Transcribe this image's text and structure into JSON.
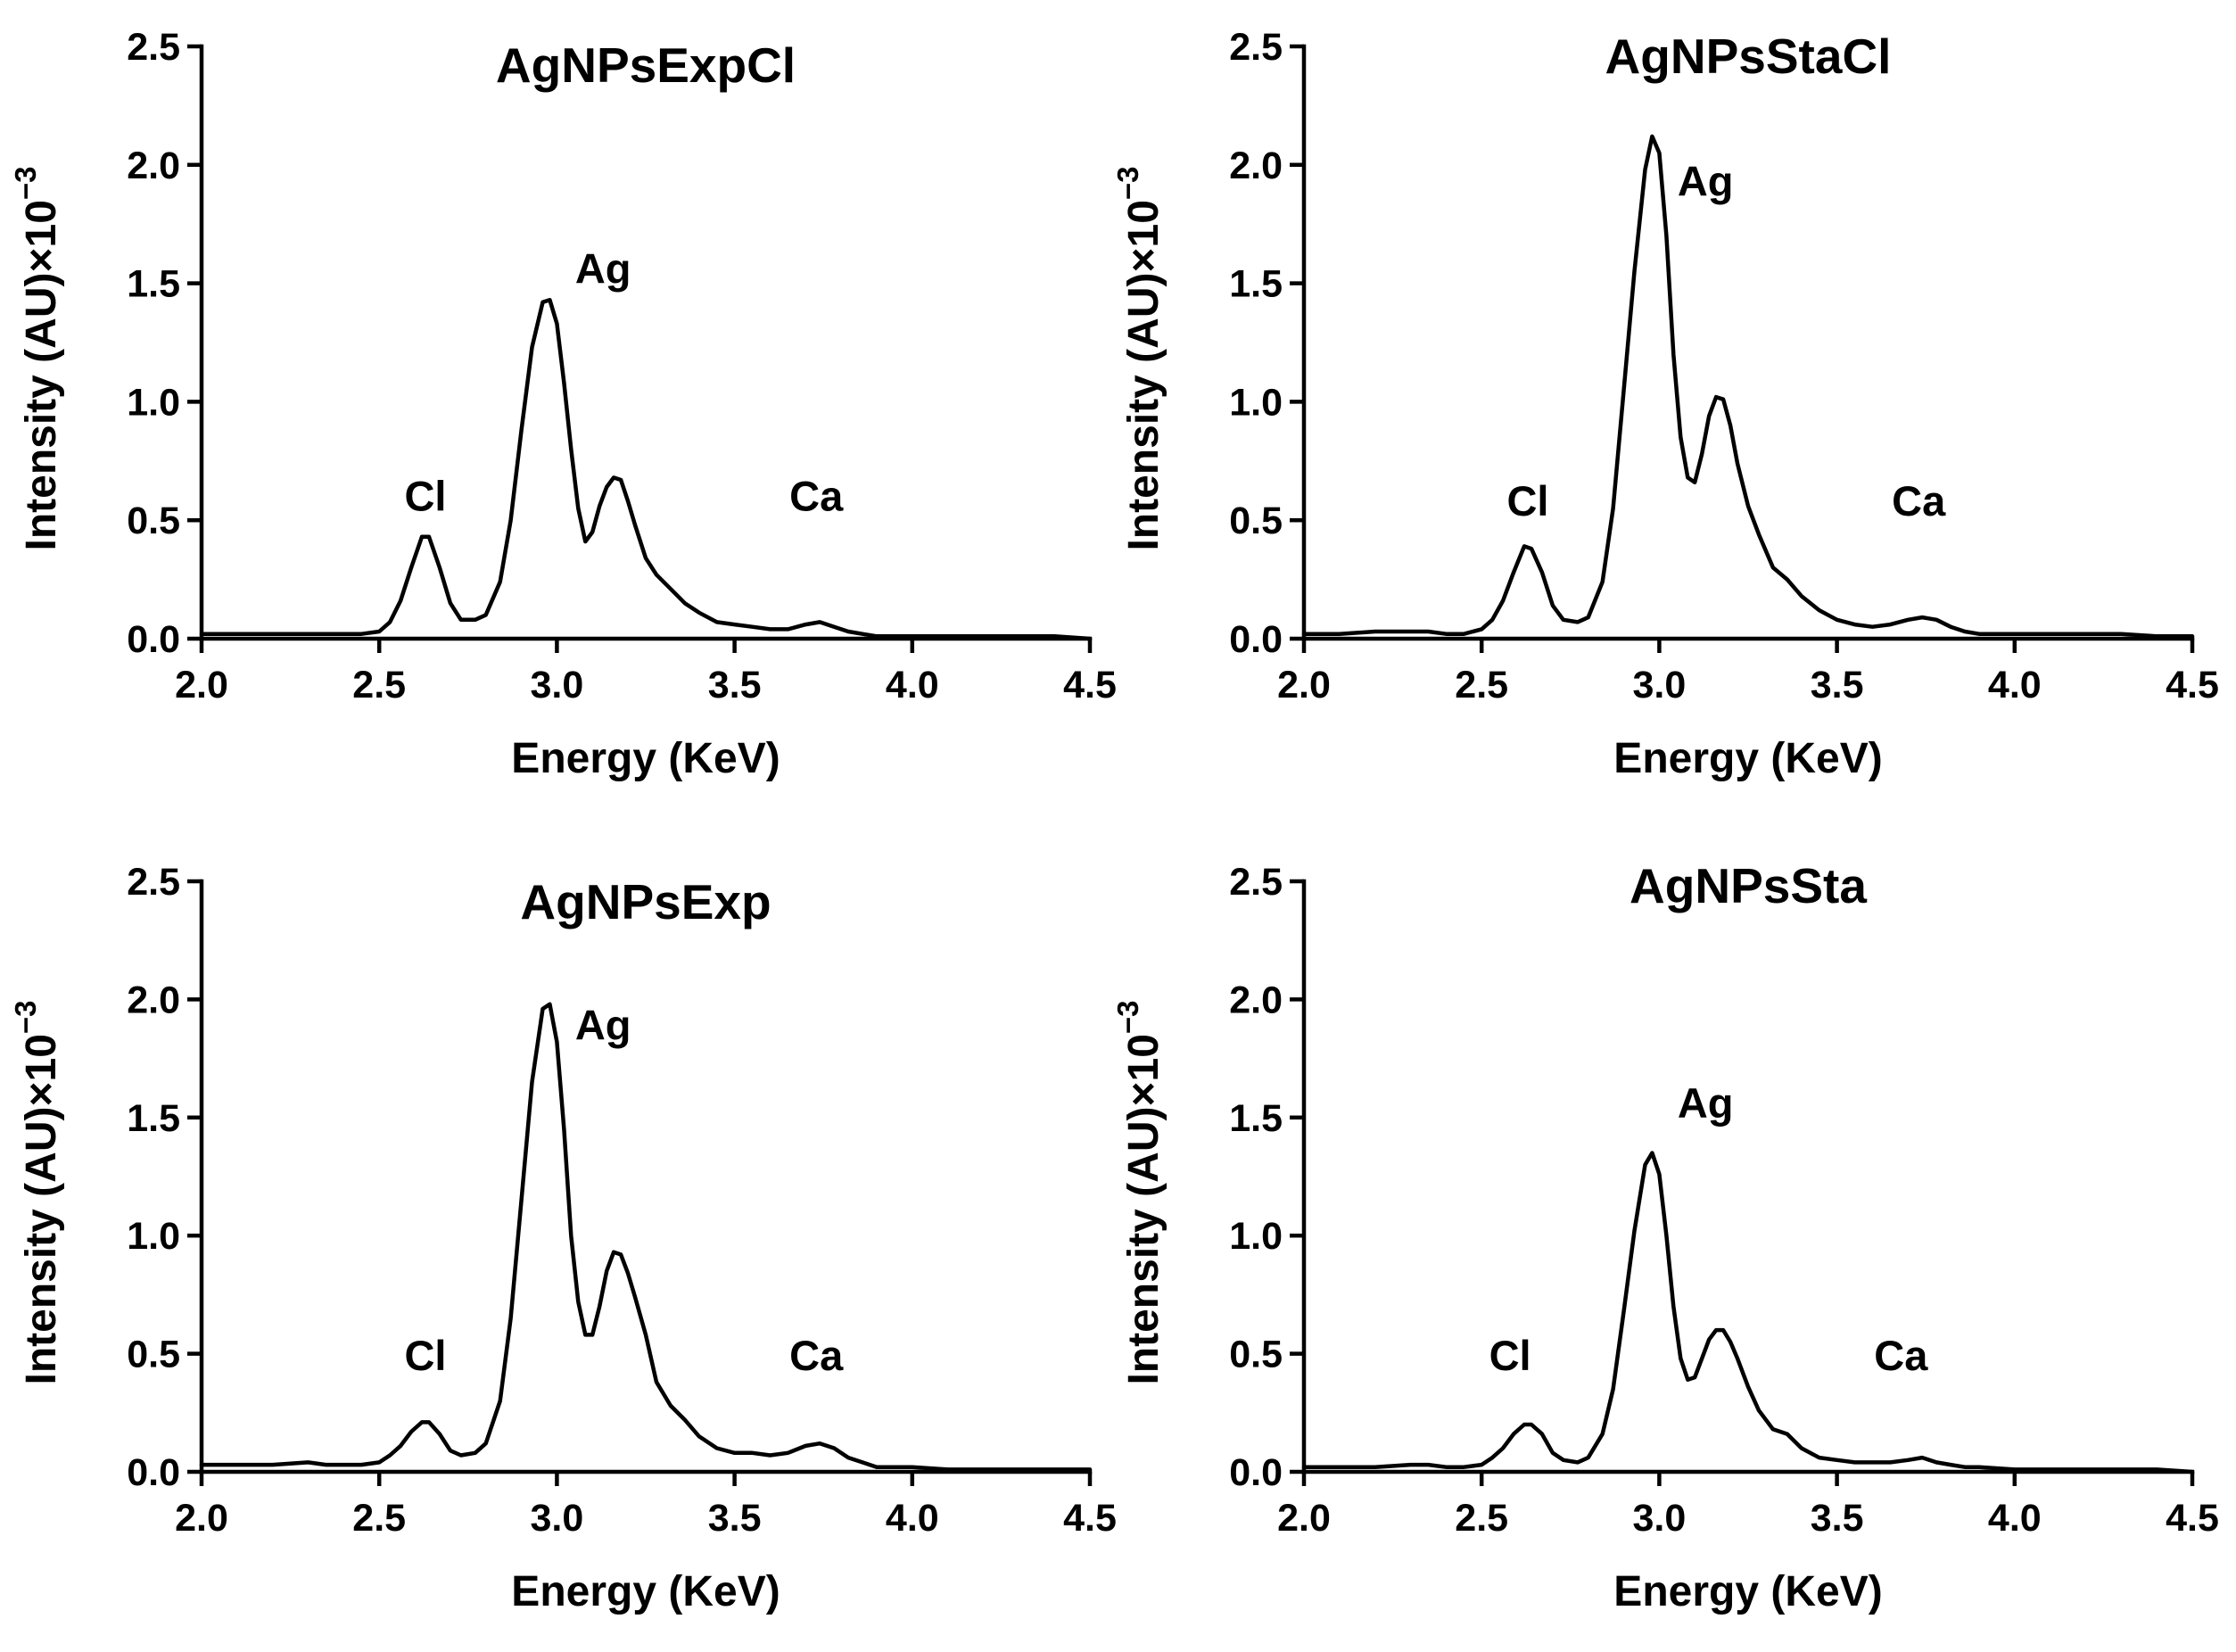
{
  "chart_data": [
    {
      "type": "line",
      "title": "AgNPsExpCl",
      "xlabel": "Energy (KeV)",
      "ylabel": {
        "main": "Intensity (AU)×10",
        "exponent": "−3"
      },
      "xlim": [
        2.0,
        4.5
      ],
      "ylim": [
        0.0,
        2.5
      ],
      "xticks": [
        "2.0",
        "2.5",
        "3.0",
        "3.5",
        "4.0",
        "4.5"
      ],
      "yticks": [
        "0.0",
        "0.5",
        "1.0",
        "1.5",
        "2.0",
        "2.5"
      ],
      "annotations": [
        {
          "text": "Cl",
          "x": 2.63,
          "y": 0.54
        },
        {
          "text": "Ag",
          "x": 3.13,
          "y": 1.5
        },
        {
          "text": "Ca",
          "x": 3.73,
          "y": 0.54
        }
      ],
      "series": [
        {
          "name": "AgNPsExpCl",
          "x": [
            2.0,
            2.1,
            2.2,
            2.3,
            2.4,
            2.45,
            2.5,
            2.53,
            2.56,
            2.59,
            2.62,
            2.64,
            2.67,
            2.7,
            2.73,
            2.77,
            2.8,
            2.84,
            2.87,
            2.9,
            2.93,
            2.96,
            2.98,
            3.0,
            3.02,
            3.04,
            3.06,
            3.08,
            3.1,
            3.12,
            3.14,
            3.16,
            3.18,
            3.2,
            3.22,
            3.25,
            3.28,
            3.32,
            3.36,
            3.4,
            3.45,
            3.5,
            3.55,
            3.6,
            3.65,
            3.7,
            3.74,
            3.78,
            3.82,
            3.86,
            3.9,
            4.0,
            4.1,
            4.2,
            4.3,
            4.4,
            4.5
          ],
          "y": [
            0.02,
            0.02,
            0.02,
            0.02,
            0.02,
            0.02,
            0.03,
            0.07,
            0.16,
            0.3,
            0.43,
            0.43,
            0.3,
            0.15,
            0.08,
            0.08,
            0.1,
            0.24,
            0.5,
            0.88,
            1.23,
            1.42,
            1.43,
            1.33,
            1.08,
            0.8,
            0.55,
            0.41,
            0.45,
            0.56,
            0.64,
            0.68,
            0.67,
            0.58,
            0.48,
            0.34,
            0.27,
            0.21,
            0.15,
            0.11,
            0.07,
            0.06,
            0.05,
            0.04,
            0.04,
            0.06,
            0.07,
            0.05,
            0.03,
            0.02,
            0.01,
            0.01,
            0.01,
            0.01,
            0.01,
            0.01,
            0.0
          ]
        }
      ]
    },
    {
      "type": "line",
      "title": "AgNPsStaCl",
      "xlabel": "Energy (KeV)",
      "ylabel": {
        "main": "Intensity (AU)×10",
        "exponent": "−3"
      },
      "xlim": [
        2.0,
        4.5
      ],
      "ylim": [
        0.0,
        2.5
      ],
      "xticks": [
        "2.0",
        "2.5",
        "3.0",
        "3.5",
        "4.0",
        "4.5"
      ],
      "yticks": [
        "0.0",
        "0.5",
        "1.0",
        "1.5",
        "2.0",
        "2.5"
      ],
      "annotations": [
        {
          "text": "Cl",
          "x": 2.63,
          "y": 0.52
        },
        {
          "text": "Ag",
          "x": 3.13,
          "y": 1.87
        },
        {
          "text": "Ca",
          "x": 3.73,
          "y": 0.52
        }
      ],
      "series": [
        {
          "name": "AgNPsStaCl",
          "x": [
            2.0,
            2.1,
            2.2,
            2.3,
            2.35,
            2.4,
            2.45,
            2.5,
            2.53,
            2.56,
            2.59,
            2.62,
            2.64,
            2.67,
            2.7,
            2.73,
            2.77,
            2.8,
            2.84,
            2.87,
            2.9,
            2.93,
            2.96,
            2.98,
            3.0,
            3.02,
            3.04,
            3.06,
            3.08,
            3.1,
            3.12,
            3.14,
            3.16,
            3.18,
            3.2,
            3.22,
            3.25,
            3.28,
            3.32,
            3.36,
            3.4,
            3.45,
            3.5,
            3.55,
            3.6,
            3.65,
            3.7,
            3.74,
            3.78,
            3.82,
            3.86,
            3.9,
            4.0,
            4.1,
            4.2,
            4.3,
            4.4,
            4.5
          ],
          "y": [
            0.02,
            0.02,
            0.03,
            0.03,
            0.03,
            0.02,
            0.02,
            0.04,
            0.08,
            0.16,
            0.28,
            0.39,
            0.38,
            0.28,
            0.14,
            0.08,
            0.07,
            0.09,
            0.24,
            0.55,
            1.05,
            1.55,
            1.98,
            2.12,
            2.05,
            1.7,
            1.2,
            0.85,
            0.68,
            0.66,
            0.78,
            0.94,
            1.02,
            1.01,
            0.9,
            0.74,
            0.56,
            0.44,
            0.3,
            0.25,
            0.18,
            0.12,
            0.08,
            0.06,
            0.05,
            0.06,
            0.08,
            0.09,
            0.08,
            0.05,
            0.03,
            0.02,
            0.02,
            0.02,
            0.02,
            0.02,
            0.01,
            0.01
          ]
        }
      ]
    },
    {
      "type": "line",
      "title": "AgNPsExp",
      "xlabel": "Energy (KeV)",
      "ylabel": {
        "main": "Intensity (AU)×10",
        "exponent": "−3"
      },
      "xlim": [
        2.0,
        4.5
      ],
      "ylim": [
        0.0,
        2.5
      ],
      "xticks": [
        "2.0",
        "2.5",
        "3.0",
        "3.5",
        "4.0",
        "4.5"
      ],
      "yticks": [
        "0.0",
        "0.5",
        "1.0",
        "1.5",
        "2.0",
        "2.5"
      ],
      "annotations": [
        {
          "text": "Cl",
          "x": 2.63,
          "y": 0.43
        },
        {
          "text": "Ag",
          "x": 3.13,
          "y": 1.83
        },
        {
          "text": "Ca",
          "x": 3.73,
          "y": 0.43
        }
      ],
      "series": [
        {
          "name": "AgNPsExp",
          "x": [
            2.0,
            2.1,
            2.2,
            2.3,
            2.35,
            2.4,
            2.45,
            2.5,
            2.53,
            2.56,
            2.59,
            2.62,
            2.64,
            2.67,
            2.7,
            2.73,
            2.77,
            2.8,
            2.84,
            2.87,
            2.9,
            2.93,
            2.96,
            2.98,
            3.0,
            3.02,
            3.04,
            3.06,
            3.08,
            3.1,
            3.12,
            3.14,
            3.16,
            3.18,
            3.2,
            3.22,
            3.25,
            3.28,
            3.32,
            3.36,
            3.4,
            3.45,
            3.5,
            3.55,
            3.6,
            3.65,
            3.7,
            3.74,
            3.78,
            3.82,
            3.86,
            3.9,
            4.0,
            4.1,
            4.2,
            4.3,
            4.4,
            4.5
          ],
          "y": [
            0.03,
            0.03,
            0.03,
            0.04,
            0.03,
            0.03,
            0.03,
            0.04,
            0.07,
            0.11,
            0.17,
            0.21,
            0.21,
            0.16,
            0.09,
            0.07,
            0.08,
            0.12,
            0.3,
            0.65,
            1.15,
            1.65,
            1.96,
            1.98,
            1.82,
            1.45,
            1.0,
            0.72,
            0.58,
            0.58,
            0.7,
            0.85,
            0.93,
            0.92,
            0.84,
            0.74,
            0.58,
            0.38,
            0.28,
            0.22,
            0.15,
            0.1,
            0.08,
            0.08,
            0.07,
            0.08,
            0.11,
            0.12,
            0.1,
            0.06,
            0.04,
            0.02,
            0.02,
            0.01,
            0.01,
            0.01,
            0.01,
            0.01
          ]
        }
      ]
    },
    {
      "type": "line",
      "title": "AgNPsSta",
      "xlabel": "Energy (KeV)",
      "ylabel": {
        "main": "Intensity (AU)×10",
        "exponent": "−3"
      },
      "xlim": [
        2.0,
        4.5
      ],
      "ylim": [
        0.0,
        2.5
      ],
      "xticks": [
        "2.0",
        "2.5",
        "3.0",
        "3.5",
        "4.0",
        "4.5"
      ],
      "yticks": [
        "0.0",
        "0.5",
        "1.0",
        "1.5",
        "2.0",
        "2.5"
      ],
      "annotations": [
        {
          "text": "Cl",
          "x": 2.58,
          "y": 0.43
        },
        {
          "text": "Ag",
          "x": 3.13,
          "y": 1.5
        },
        {
          "text": "Ca",
          "x": 3.68,
          "y": 0.43
        }
      ],
      "series": [
        {
          "name": "AgNPsSta",
          "x": [
            2.0,
            2.1,
            2.2,
            2.3,
            2.35,
            2.4,
            2.45,
            2.5,
            2.53,
            2.56,
            2.59,
            2.62,
            2.64,
            2.67,
            2.7,
            2.73,
            2.77,
            2.8,
            2.84,
            2.87,
            2.9,
            2.93,
            2.96,
            2.98,
            3.0,
            3.02,
            3.04,
            3.06,
            3.08,
            3.1,
            3.12,
            3.14,
            3.16,
            3.18,
            3.2,
            3.22,
            3.25,
            3.28,
            3.32,
            3.36,
            3.4,
            3.45,
            3.5,
            3.55,
            3.6,
            3.65,
            3.7,
            3.74,
            3.78,
            3.82,
            3.86,
            3.9,
            4.0,
            4.1,
            4.2,
            4.3,
            4.4,
            4.5
          ],
          "y": [
            0.02,
            0.02,
            0.02,
            0.03,
            0.03,
            0.02,
            0.02,
            0.03,
            0.06,
            0.1,
            0.16,
            0.2,
            0.2,
            0.16,
            0.08,
            0.05,
            0.04,
            0.06,
            0.16,
            0.35,
            0.68,
            1.02,
            1.3,
            1.35,
            1.26,
            1.0,
            0.7,
            0.48,
            0.39,
            0.4,
            0.48,
            0.56,
            0.6,
            0.6,
            0.55,
            0.48,
            0.36,
            0.26,
            0.18,
            0.16,
            0.1,
            0.06,
            0.05,
            0.04,
            0.04,
            0.04,
            0.05,
            0.06,
            0.04,
            0.03,
            0.02,
            0.02,
            0.01,
            0.01,
            0.01,
            0.01,
            0.01,
            0.0
          ]
        }
      ]
    }
  ]
}
